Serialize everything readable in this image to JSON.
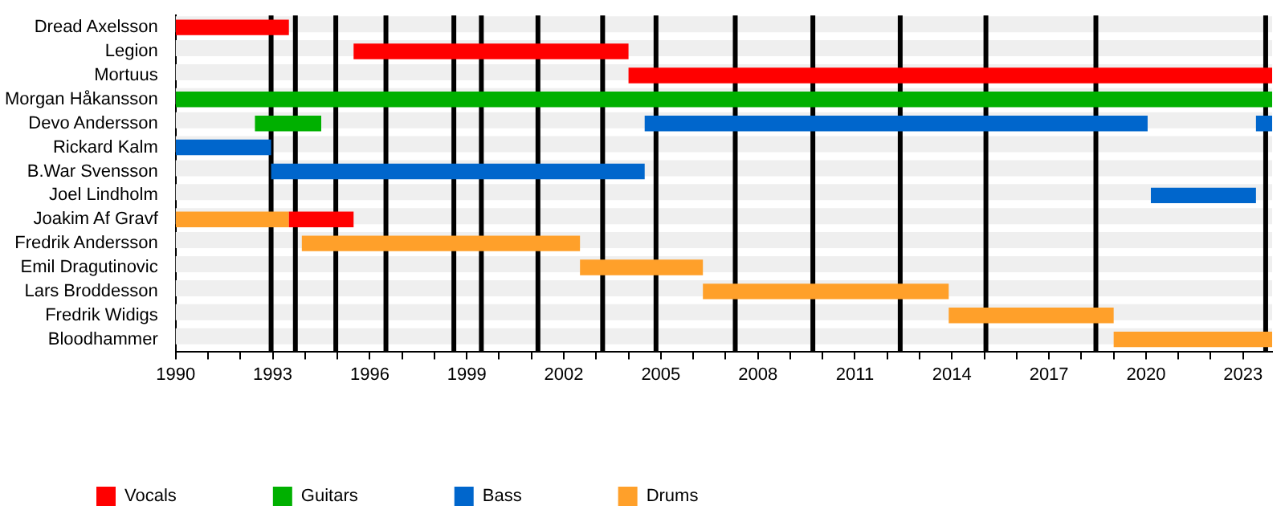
{
  "chart_data": {
    "type": "bar",
    "orientation": "horizontal",
    "legend": "bottom",
    "categories": [
      "Dread Axelsson",
      "Legion",
      "Mortuus",
      "Morgan Håkansson",
      "Devo Andersson",
      "Rickard Kalm",
      "B.War Svensson",
      "Joel Lindholm",
      "Joakim Af Gravf",
      "Fredrik Andersson",
      "Emil Dragutinovic",
      "Lars Broddesson",
      "Fredrik Widigs",
      "Bloodhammer"
    ],
    "series": [
      {
        "name": "Vocals",
        "color": "#ff0000",
        "base": [
          1990,
          1995.5,
          2004.0,
          null,
          null,
          null,
          null,
          null,
          1993.5,
          null,
          null,
          null,
          null,
          null
        ],
        "values": [
          3.5,
          8.5,
          19.9,
          null,
          null,
          null,
          null,
          null,
          2.0,
          null,
          null,
          null,
          null,
          null
        ]
      },
      {
        "name": "Guitars",
        "color": "#00b000",
        "base": [
          null,
          null,
          null,
          1990,
          1992.45,
          null,
          null,
          null,
          null,
          null,
          null,
          null,
          null,
          null
        ],
        "values": [
          null,
          null,
          null,
          33.9,
          2.05,
          null,
          null,
          null,
          null,
          null,
          null,
          null,
          null,
          null
        ]
      },
      {
        "name": "Bass",
        "color": "#0066cc",
        "base": [
          null,
          null,
          null,
          null,
          2004.5,
          1990,
          1992.95,
          2020.15,
          null,
          null,
          null,
          null,
          null,
          null
        ],
        "values": [
          null,
          null,
          null,
          null,
          15.55,
          2.95,
          11.55,
          3.25,
          null,
          null,
          null,
          null,
          null,
          null
        ]
      },
      {
        "color": "#0066cc",
        "base": [
          null,
          null,
          null,
          null,
          2023.4,
          null,
          null,
          null,
          null,
          null,
          null,
          null,
          null,
          null
        ],
        "values": [
          null,
          null,
          null,
          null,
          0.5,
          null,
          null,
          null,
          null,
          null,
          null,
          null,
          null,
          null
        ]
      },
      {
        "name": "Drums",
        "color": "#ffa02a",
        "base": [
          null,
          null,
          null,
          null,
          null,
          null,
          null,
          null,
          1990,
          1993.9,
          2002.5,
          2006.3,
          2013.9,
          2019.0
        ],
        "values": [
          null,
          null,
          null,
          null,
          null,
          null,
          null,
          null,
          3.5,
          8.6,
          3.8,
          7.6,
          5.1,
          4.9
        ]
      }
    ],
    "xlim": [
      1990,
      2023.9
    ],
    "xticks": [
      1990,
      {
        "value": 1991,
        "label": null
      },
      {
        "value": 1992,
        "label": null
      },
      1993,
      {
        "value": 1994,
        "label": null
      },
      {
        "value": 1995,
        "label": null
      },
      1996,
      {
        "value": 1997,
        "label": null
      },
      {
        "value": 1998,
        "label": null
      },
      1999,
      {
        "value": 2000,
        "label": null
      },
      {
        "value": 2001,
        "label": null
      },
      2002,
      {
        "value": 2003,
        "label": null
      },
      {
        "value": 2004,
        "label": null
      },
      2005,
      {
        "value": 2006,
        "label": null
      },
      {
        "value": 2007,
        "label": null
      },
      2008,
      {
        "value": 2009,
        "label": null
      },
      {
        "value": 2010,
        "label": null
      },
      2011,
      {
        "value": 2012,
        "label": null
      },
      {
        "value": 2013,
        "label": null
      },
      2014,
      {
        "value": 2015,
        "label": null
      },
      {
        "value": 2016,
        "label": null
      },
      2017,
      {
        "value": 2018,
        "label": null
      },
      {
        "value": 2019,
        "label": null
      },
      2020,
      {
        "value": 2021,
        "label": null
      },
      {
        "value": 2022,
        "label": null
      },
      2023
    ],
    "ref_lines": [
      {
        "axis": "x",
        "value": 1992.95,
        "color": "#000000"
      },
      {
        "axis": "x",
        "value": 1993.7,
        "color": "#000000"
      },
      {
        "axis": "x",
        "value": 1994.95,
        "color": "#000000"
      },
      {
        "axis": "x",
        "value": 1996.5,
        "color": "#000000"
      },
      {
        "axis": "x",
        "value": 1998.6,
        "color": "#000000"
      },
      {
        "axis": "x",
        "value": 1999.45,
        "color": "#000000"
      },
      {
        "axis": "x",
        "value": 2001.2,
        "color": "#000000"
      },
      {
        "axis": "x",
        "value": 2003.2,
        "color": "#000000"
      },
      {
        "axis": "x",
        "value": 2004.85,
        "color": "#000000"
      },
      {
        "axis": "x",
        "value": 2007.3,
        "color": "#000000"
      },
      {
        "axis": "x",
        "value": 2009.7,
        "color": "#000000"
      },
      {
        "axis": "x",
        "value": 2012.4,
        "color": "#000000"
      },
      {
        "axis": "x",
        "value": 2015.05,
        "color": "#000000"
      },
      {
        "axis": "x",
        "value": 2018.45,
        "color": "#000000"
      },
      {
        "axis": "x",
        "value": 2023.7,
        "color": "#000000"
      }
    ]
  }
}
